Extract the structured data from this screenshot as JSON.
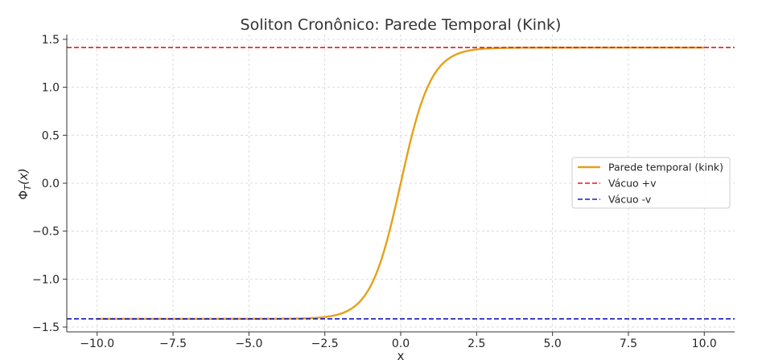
{
  "chart_data": {
    "type": "line",
    "title": "Soliton Cronônico: Parede Temporal (Kink)",
    "xlabel": "x",
    "ylabel": "Φ_T(x)",
    "ylabel_symbol": "Φ",
    "ylabel_subscript": "T",
    "ylabel_arg": "(x)",
    "xlim": [
      -11,
      11
    ],
    "ylim": [
      -1.55,
      1.55
    ],
    "xticks": [
      -10.0,
      -7.5,
      -5.0,
      -2.5,
      0.0,
      2.5,
      5.0,
      7.5,
      10.0
    ],
    "xtick_labels": [
      "−10.0",
      "−7.5",
      "−5.0",
      "−2.5",
      "0.0",
      "2.5",
      "5.0",
      "7.5",
      "10.0"
    ],
    "yticks": [
      -1.5,
      -1.0,
      -0.5,
      0.0,
      0.5,
      1.0,
      1.5
    ],
    "ytick_labels": [
      "−1.5",
      "−1.0",
      "−0.5",
      "0.0",
      "0.5",
      "1.0",
      "1.5"
    ],
    "grid": true,
    "legend_position": "center-right",
    "series": [
      {
        "name": "Parede temporal (kink)",
        "style": "solid",
        "color": "#e5a117",
        "x_range": [
          -10,
          10
        ],
        "function": "1.414 * tanh(x)",
        "x": [
          -10,
          -4,
          -3,
          -2.5,
          -2,
          -1.5,
          -1,
          -0.5,
          0,
          0.5,
          1,
          1.5,
          2,
          2.5,
          3,
          4,
          10
        ],
        "values": [
          -1.414,
          -1.41,
          -1.4,
          -1.38,
          -1.36,
          -1.28,
          -1.08,
          -0.65,
          0.0,
          0.65,
          1.08,
          1.28,
          1.36,
          1.38,
          1.4,
          1.41,
          1.414
        ]
      },
      {
        "name": "Vácuo +v",
        "style": "dashed",
        "color": "#e41a1c",
        "x": [
          -11,
          11
        ],
        "values": [
          1.414,
          1.414
        ]
      },
      {
        "name": "Vácuo -v",
        "style": "dashed",
        "color": "#1a1ab8",
        "x": [
          -11,
          11
        ],
        "values": [
          -1.414,
          -1.414
        ]
      }
    ]
  }
}
